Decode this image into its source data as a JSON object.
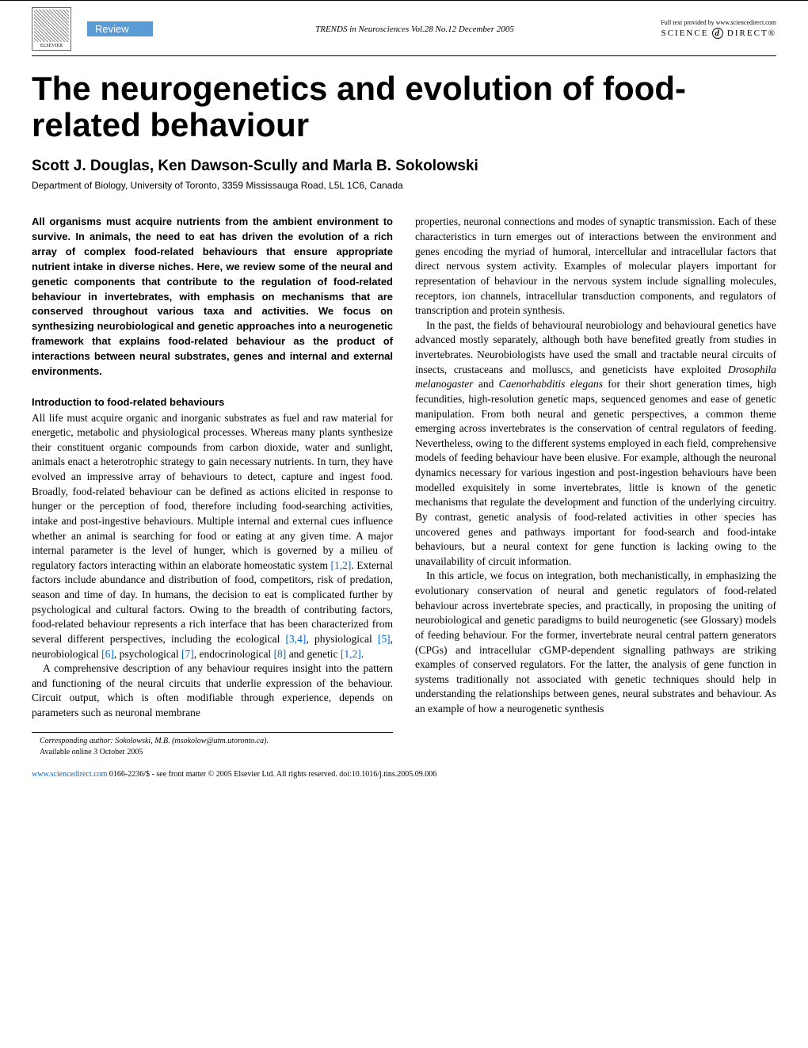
{
  "header": {
    "publisher": "ELSEVIER",
    "review_label": "Review",
    "journal_line": "TRENDS in Neurosciences   Vol.28 No.12 December 2005",
    "fulltext_line": "Full text provided by www.sciencedirect.com",
    "sd_prefix": "SCIENCE",
    "sd_suffix": "DIRECT®"
  },
  "title": "The neurogenetics and evolution of food-related behaviour",
  "authors": "Scott J. Douglas, Ken Dawson-Scully and Marla B. Sokolowski",
  "affiliation": "Department of Biology, University of Toronto, 3359 Mississauga Road, L5L 1C6, Canada",
  "abstract": "All organisms must acquire nutrients from the ambient environment to survive. In animals, the need to eat has driven the evolution of a rich array of complex food-related behaviours that ensure appropriate nutrient intake in diverse niches. Here, we review some of the neural and genetic components that contribute to the regulation of food-related behaviour in invertebrates, with emphasis on mechanisms that are conserved throughout various taxa and activities. We focus on synthesizing neurobiological and genetic approaches into a neurogenetic framework that explains food-related behaviour as the product of interactions between neural substrates, genes and internal and external environments.",
  "left_column": {
    "section_heading": "Introduction to food-related behaviours",
    "p1a": "All life must acquire organic and inorganic substrates as fuel and raw material for energetic, metabolic and physiological processes. Whereas many plants synthesize their constituent organic compounds from carbon dioxide, water and sunlight, animals enact a heterotrophic strategy to gain necessary nutrients. In turn, they have evolved an impressive array of behaviours to detect, capture and ingest food. Broadly, food-related behaviour can be defined as actions elicited in response to hunger or the perception of food, therefore including food-searching activities, intake and post-ingestive behaviours. Multiple internal and external cues influence whether an animal is searching for food or eating at any given time. A major internal parameter is the level of hunger, which is governed by a milieu of regulatory factors interacting within an elaborate homeostatic system ",
    "ref1": "[1,2]",
    "p1b": ". External factors include abundance and distribution of food, competitors, risk of predation, season and time of day. In humans, the decision to eat is complicated further by psychological and cultural factors. Owing to the breadth of contributing factors, food-related behaviour represents a rich interface that has been characterized from several different perspectives, including the ecological ",
    "ref2": "[3,4]",
    "p1c": ", physiological ",
    "ref3": "[5]",
    "p1d": ", neurobiological ",
    "ref4": "[6]",
    "p1e": ", psychological ",
    "ref5": "[7]",
    "p1f": ", endocrinological ",
    "ref6": "[8]",
    "p1g": " and genetic ",
    "ref7": "[1,2]",
    "p1h": ".",
    "p2": "A comprehensive description of any behaviour requires insight into the pattern and functioning of the neural circuits that underlie expression of the behaviour. Circuit output, which is often modifiable through experience, depends on parameters such as neuronal membrane",
    "corresponding_label": "Corresponding author:",
    "corresponding_text": " Sokolowski, M.B. (msokolow@utm.utoronto.ca).",
    "available": "Available online 3 October 2005"
  },
  "right_column": {
    "p1": "properties, neuronal connections and modes of synaptic transmission. Each of these characteristics in turn emerges out of interactions between the environment and genes encoding the myriad of humoral, intercellular and intracellular factors that direct nervous system activity. Examples of molecular players important for representation of behaviour in the nervous system include signalling molecules, receptors, ion channels, intracellular transduction components, and regulators of transcription and protein synthesis.",
    "p2a": "In the past, the fields of behavioural neurobiology and behavioural genetics have advanced mostly separately, although both have benefited greatly from studies in invertebrates. Neurobiologists have used the small and tractable neural circuits of insects, crustaceans and molluscs, and geneticists have exploited ",
    "p2_it1": "Drosophila melanogaster",
    "p2b": " and ",
    "p2_it2": "Caenorhabditis elegans",
    "p2c": " for their short generation times, high fecundities, high-resolution genetic maps, sequenced genomes and ease of genetic manipulation. From both neural and genetic perspectives, a common theme emerging across invertebrates is the conservation of central regulators of feeding. Nevertheless, owing to the different systems employed in each field, comprehensive models of feeding behaviour have been elusive. For example, although the neuronal dynamics necessary for various ingestion and post-ingestion behaviours have been modelled exquisitely in some invertebrates, little is known of the genetic mechanisms that regulate the development and function of the underlying circuitry. By contrast, genetic analysis of food-related activities in other species has uncovered genes and pathways important for food-search and food-intake behaviours, but a neural context for gene function is lacking owing to the unavailability of circuit information.",
    "p3": "In this article, we focus on integration, both mechanistically, in emphasizing the evolutionary conservation of neural and genetic regulators of food-related behaviour across invertebrate species, and practically, in proposing the uniting of neurobiological and genetic paradigms to build neurogenetic (see Glossary) models of feeding behaviour. For the former, invertebrate neural central pattern generators (CPGs) and intracellular cGMP-dependent signalling pathways are striking examples of conserved regulators. For the latter, the analysis of gene function in systems traditionally not associated with genetic techniques should help in understanding the relationships between genes, neural substrates and behaviour. As an example of how a neurogenetic synthesis"
  },
  "footer": {
    "url": "www.sciencedirect.com",
    "text": "   0166-2236/$ - see front matter © 2005 Elsevier Ltd. All rights reserved. doi:10.1016/j.tins.2005.09.006"
  }
}
